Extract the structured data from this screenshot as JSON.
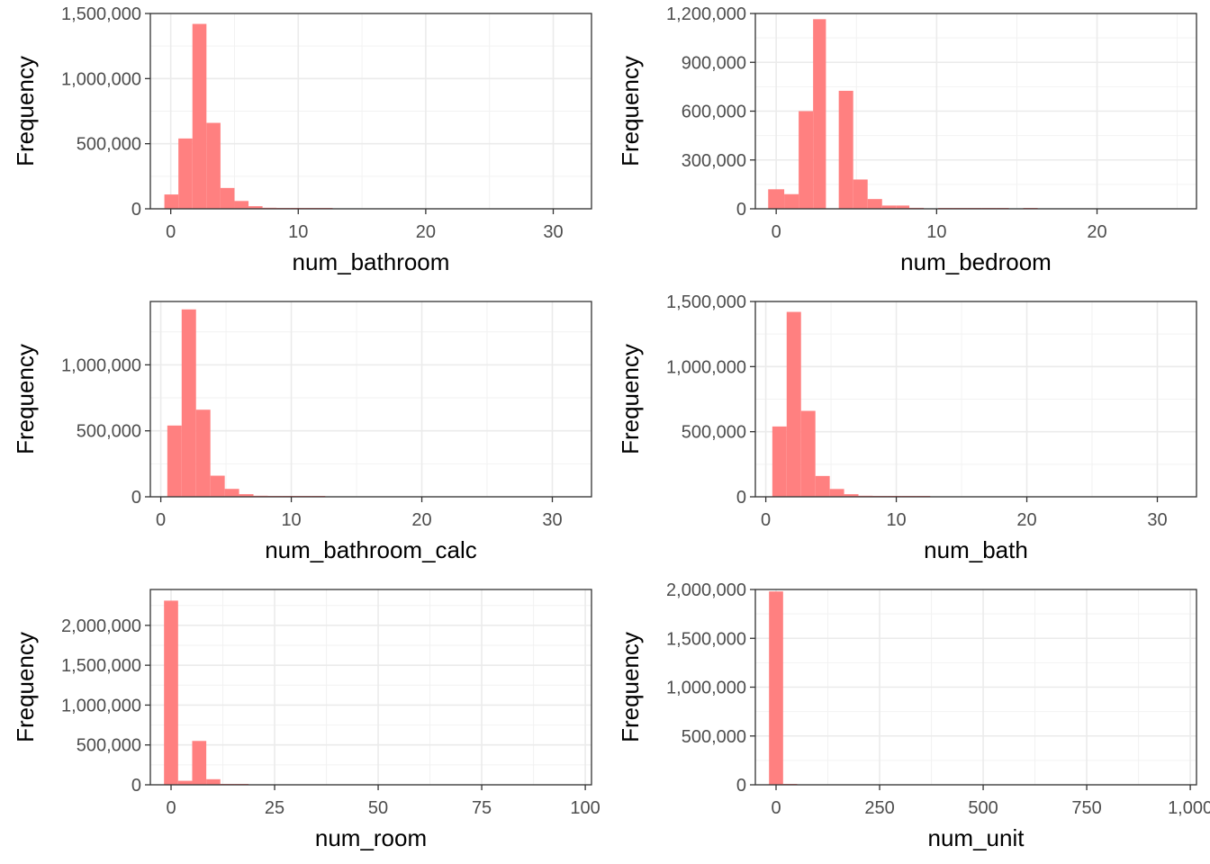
{
  "chart_data": [
    {
      "type": "bar",
      "xlabel": "num_bathroom",
      "ylabel": "Frequency",
      "xlim": [
        -1.6,
        33
      ],
      "ylim": [
        0,
        1500000
      ],
      "xticks": [
        0,
        10,
        20,
        30
      ],
      "yticks": [
        0,
        500000,
        1000000,
        1500000
      ],
      "ytick_labels": [
        "0",
        "500,000",
        "1,000,000",
        "1,500,000"
      ],
      "bins": [
        {
          "x0": -0.5,
          "x1": 0.6,
          "value": 110000
        },
        {
          "x0": 0.6,
          "x1": 1.7,
          "value": 540000
        },
        {
          "x0": 1.7,
          "x1": 2.8,
          "value": 1420000
        },
        {
          "x0": 2.8,
          "x1": 3.9,
          "value": 660000
        },
        {
          "x0": 3.9,
          "x1": 5.0,
          "value": 160000
        },
        {
          "x0": 5.0,
          "x1": 6.1,
          "value": 60000
        },
        {
          "x0": 6.1,
          "x1": 7.2,
          "value": 20000
        },
        {
          "x0": 7.2,
          "x1": 8.3,
          "value": 8000
        },
        {
          "x0": 8.3,
          "x1": 9.4,
          "value": 5000
        },
        {
          "x0": 9.4,
          "x1": 10.5,
          "value": 4000
        },
        {
          "x0": 10.5,
          "x1": 11.6,
          "value": 3000
        },
        {
          "x0": 11.6,
          "x1": 12.7,
          "value": 2000
        }
      ],
      "grid": true,
      "legend": "none",
      "bar_color": "#ff8080"
    },
    {
      "type": "bar",
      "xlabel": "num_bedroom",
      "ylabel": "Frequency",
      "xlim": [
        -1.3,
        26.2
      ],
      "ylim": [
        0,
        1200000
      ],
      "xticks": [
        0,
        10,
        20
      ],
      "yticks": [
        0,
        300000,
        600000,
        900000,
        1200000
      ],
      "ytick_labels": [
        "0",
        "300,000",
        "600,000",
        "900,000",
        "1,200,000"
      ],
      "bins": [
        {
          "x0": -0.5,
          "x1": 0.5,
          "value": 120000
        },
        {
          "x0": 0.5,
          "x1": 1.4,
          "value": 90000
        },
        {
          "x0": 1.4,
          "x1": 2.3,
          "value": 600000
        },
        {
          "x0": 2.3,
          "x1": 3.1,
          "value": 1165000
        },
        {
          "x0": 3.1,
          "x1": 3.9,
          "value": 0
        },
        {
          "x0": 3.9,
          "x1": 4.8,
          "value": 725000
        },
        {
          "x0": 4.8,
          "x1": 5.7,
          "value": 180000
        },
        {
          "x0": 5.7,
          "x1": 6.6,
          "value": 60000
        },
        {
          "x0": 6.6,
          "x1": 7.5,
          "value": 20000
        },
        {
          "x0": 7.5,
          "x1": 8.3,
          "value": 20000
        },
        {
          "x0": 8.3,
          "x1": 9.2,
          "value": 6000
        },
        {
          "x0": 9.2,
          "x1": 10.1,
          "value": 0
        },
        {
          "x0": 10.1,
          "x1": 11.0,
          "value": 5000
        },
        {
          "x0": 11.0,
          "x1": 11.9,
          "value": 4000
        },
        {
          "x0": 11.9,
          "x1": 12.8,
          "value": 3000
        },
        {
          "x0": 12.8,
          "x1": 13.7,
          "value": 2000
        },
        {
          "x0": 13.7,
          "x1": 14.5,
          "value": 1500
        },
        {
          "x0": 15.4,
          "x1": 16.3,
          "value": 3000
        }
      ],
      "grid": true,
      "legend": "none",
      "bar_color": "#ff8080"
    },
    {
      "type": "bar",
      "xlabel": "num_bathroom_calc",
      "ylabel": "Frequency",
      "xlim": [
        -0.8,
        33
      ],
      "ylim": [
        0,
        1480000
      ],
      "xticks": [
        0,
        10,
        20,
        30
      ],
      "yticks": [
        0,
        500000,
        1000000
      ],
      "ytick_labels": [
        "0",
        "500,000",
        "1,000,000"
      ],
      "bins": [
        {
          "x0": 0.5,
          "x1": 1.6,
          "value": 540000
        },
        {
          "x0": 1.6,
          "x1": 2.7,
          "value": 1420000
        },
        {
          "x0": 2.7,
          "x1": 3.8,
          "value": 660000
        },
        {
          "x0": 3.8,
          "x1": 4.9,
          "value": 160000
        },
        {
          "x0": 4.9,
          "x1": 6.0,
          "value": 60000
        },
        {
          "x0": 6.0,
          "x1": 7.1,
          "value": 20000
        },
        {
          "x0": 7.1,
          "x1": 8.2,
          "value": 8000
        },
        {
          "x0": 8.2,
          "x1": 9.3,
          "value": 5000
        },
        {
          "x0": 9.3,
          "x1": 10.4,
          "value": 4000
        },
        {
          "x0": 10.4,
          "x1": 11.5,
          "value": 3000
        },
        {
          "x0": 11.5,
          "x1": 12.6,
          "value": 2000
        }
      ],
      "grid": true,
      "legend": "none",
      "bar_color": "#ff8080"
    },
    {
      "type": "bar",
      "xlabel": "num_bath",
      "ylabel": "Frequency",
      "xlim": [
        -0.8,
        33
      ],
      "ylim": [
        0,
        1500000
      ],
      "xticks": [
        0,
        10,
        20,
        30
      ],
      "yticks": [
        0,
        500000,
        1000000,
        1500000
      ],
      "ytick_labels": [
        "0",
        "500,000",
        "1,000,000",
        "1,500,000"
      ],
      "bins": [
        {
          "x0": 0.5,
          "x1": 1.6,
          "value": 540000
        },
        {
          "x0": 1.6,
          "x1": 2.7,
          "value": 1420000
        },
        {
          "x0": 2.7,
          "x1": 3.8,
          "value": 660000
        },
        {
          "x0": 3.8,
          "x1": 4.9,
          "value": 160000
        },
        {
          "x0": 4.9,
          "x1": 6.0,
          "value": 60000
        },
        {
          "x0": 6.0,
          "x1": 7.1,
          "value": 20000
        },
        {
          "x0": 7.1,
          "x1": 8.2,
          "value": 8000
        },
        {
          "x0": 8.2,
          "x1": 9.3,
          "value": 5000
        },
        {
          "x0": 9.3,
          "x1": 10.4,
          "value": 4000
        },
        {
          "x0": 10.4,
          "x1": 11.5,
          "value": 3000
        },
        {
          "x0": 11.5,
          "x1": 12.6,
          "value": 2000
        }
      ],
      "grid": true,
      "legend": "none",
      "bar_color": "#ff8080"
    },
    {
      "type": "bar",
      "xlabel": "num_room",
      "ylabel": "Frequency",
      "xlim": [
        -5,
        101.5
      ],
      "ylim": [
        0,
        2450000
      ],
      "xticks": [
        0,
        25,
        50,
        75,
        100
      ],
      "yticks": [
        0,
        500000,
        1000000,
        1500000,
        2000000
      ],
      "ytick_labels": [
        "0",
        "500,000",
        "1,000,000",
        "1,500,000",
        "2,000,000"
      ],
      "bins": [
        {
          "x0": -1.7,
          "x1": 1.7,
          "value": 2310000
        },
        {
          "x0": 1.7,
          "x1": 5.1,
          "value": 50000
        },
        {
          "x0": 5.1,
          "x1": 8.5,
          "value": 550000
        },
        {
          "x0": 8.5,
          "x1": 11.9,
          "value": 70000
        },
        {
          "x0": 11.9,
          "x1": 15.3,
          "value": 10000
        },
        {
          "x0": 15.3,
          "x1": 18.7,
          "value": 5000
        }
      ],
      "grid": true,
      "legend": "none",
      "bar_color": "#ff8080"
    },
    {
      "type": "bar",
      "xlabel": "num_unit",
      "ylabel": "Frequency",
      "xlim": [
        -50,
        1015
      ],
      "ylim": [
        0,
        2000000
      ],
      "xticks": [
        0,
        250,
        500,
        750,
        1000
      ],
      "xtick_labels": [
        "0",
        "250",
        "500",
        "750",
        "1,000"
      ],
      "yticks": [
        0,
        500000,
        1000000,
        1500000,
        2000000
      ],
      "ytick_labels": [
        "0",
        "500,000",
        "1,000,000",
        "1,500,000",
        "2,000,000"
      ],
      "bins": [
        {
          "x0": -17,
          "x1": 17,
          "value": 1980000
        },
        {
          "x0": 17,
          "x1": 51,
          "value": 8000
        }
      ],
      "grid": true,
      "legend": "none",
      "bar_color": "#ff8080"
    }
  ]
}
